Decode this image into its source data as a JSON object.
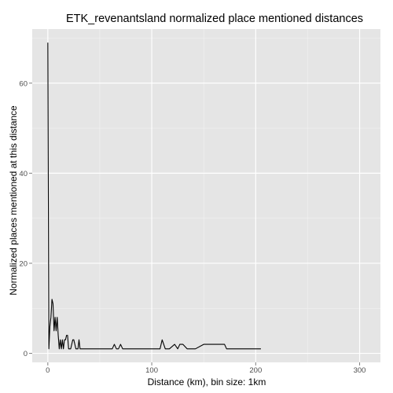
{
  "chart_data": {
    "type": "line",
    "title": "ETK_revenantsland normalized place mentioned distances",
    "xlabel": "Distance (km), bin size: 1km",
    "ylabel": "Normalized places mentioned at this distance",
    "xlim": [
      -15,
      320
    ],
    "ylim": [
      -2,
      72
    ],
    "x_ticks": [
      0,
      100,
      200,
      300
    ],
    "y_ticks": [
      0,
      20,
      40,
      60
    ],
    "grid": true,
    "background": "#e5e5e5",
    "grid_color": "#ffffff",
    "line_color": "#000000",
    "series": [
      {
        "x": [
          0,
          1,
          2,
          3,
          4,
          5,
          6,
          7,
          8,
          9,
          10,
          11,
          12,
          13,
          14,
          15,
          16,
          17,
          18,
          19,
          20,
          21,
          22,
          23,
          24,
          25,
          26,
          27,
          28,
          29,
          30,
          31,
          32,
          33,
          34,
          35,
          36,
          37,
          38,
          62,
          64,
          66,
          68,
          70,
          72,
          73,
          108,
          110,
          113,
          117,
          122,
          125,
          127,
          130,
          134,
          138,
          142,
          150,
          155,
          165,
          170,
          172,
          205
        ],
        "y": [
          69,
          1,
          6,
          8,
          12,
          11,
          5,
          8,
          5,
          8,
          4,
          1,
          3,
          1,
          3,
          1,
          3,
          3,
          4,
          4,
          1,
          1,
          1,
          2,
          3,
          3,
          2,
          1,
          1,
          1,
          3,
          1,
          1,
          1,
          1,
          1,
          1,
          1,
          1,
          1,
          2,
          1,
          1,
          2,
          1,
          1,
          1,
          3,
          1,
          1,
          2,
          1,
          2,
          2,
          1,
          1,
          1,
          2,
          2,
          2,
          2,
          1,
          1
        ]
      }
    ]
  }
}
